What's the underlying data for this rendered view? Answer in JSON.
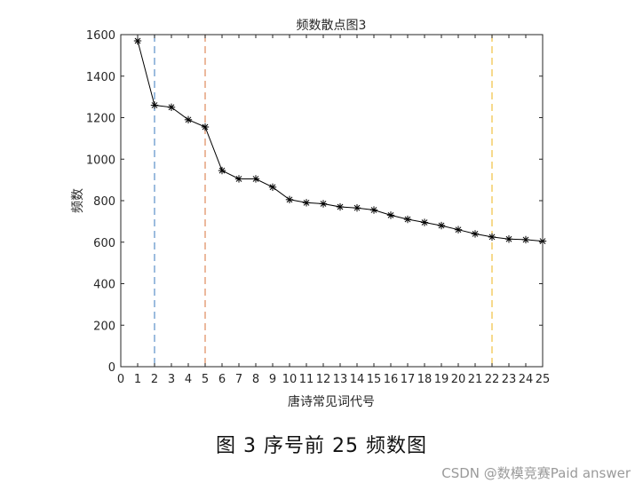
{
  "chart_data": {
    "type": "line",
    "title": "频数散点图3",
    "xlabel": "唐诗常见词代号",
    "ylabel": "频数",
    "xlim": [
      0,
      25
    ],
    "ylim": [
      0,
      1600
    ],
    "x_ticks": [
      0,
      1,
      2,
      3,
      4,
      5,
      6,
      7,
      8,
      9,
      10,
      11,
      12,
      13,
      14,
      15,
      16,
      17,
      18,
      19,
      20,
      21,
      22,
      23,
      24,
      25
    ],
    "y_ticks": [
      0,
      200,
      400,
      600,
      800,
      1000,
      1200,
      1400,
      1600
    ],
    "grid": false,
    "marker": "*",
    "line_color": "#000000",
    "x": [
      1,
      2,
      3,
      4,
      5,
      6,
      7,
      8,
      9,
      10,
      11,
      12,
      13,
      14,
      15,
      16,
      17,
      18,
      19,
      20,
      21,
      22,
      23,
      24,
      25
    ],
    "y": [
      1570,
      1260,
      1250,
      1190,
      1155,
      945,
      905,
      905,
      865,
      805,
      790,
      785,
      770,
      765,
      755,
      730,
      710,
      695,
      680,
      660,
      640,
      625,
      615,
      612,
      605
    ],
    "vlines": [
      {
        "x": 2,
        "color": "#5b8fc7",
        "style": "dashed"
      },
      {
        "x": 5,
        "color": "#e08a5c",
        "style": "dashed"
      },
      {
        "x": 22,
        "color": "#f0c040",
        "style": "dashed"
      }
    ]
  },
  "caption": "图 3 序号前 25 频数图",
  "watermark": "CSDN @数模竞赛Paid answer"
}
